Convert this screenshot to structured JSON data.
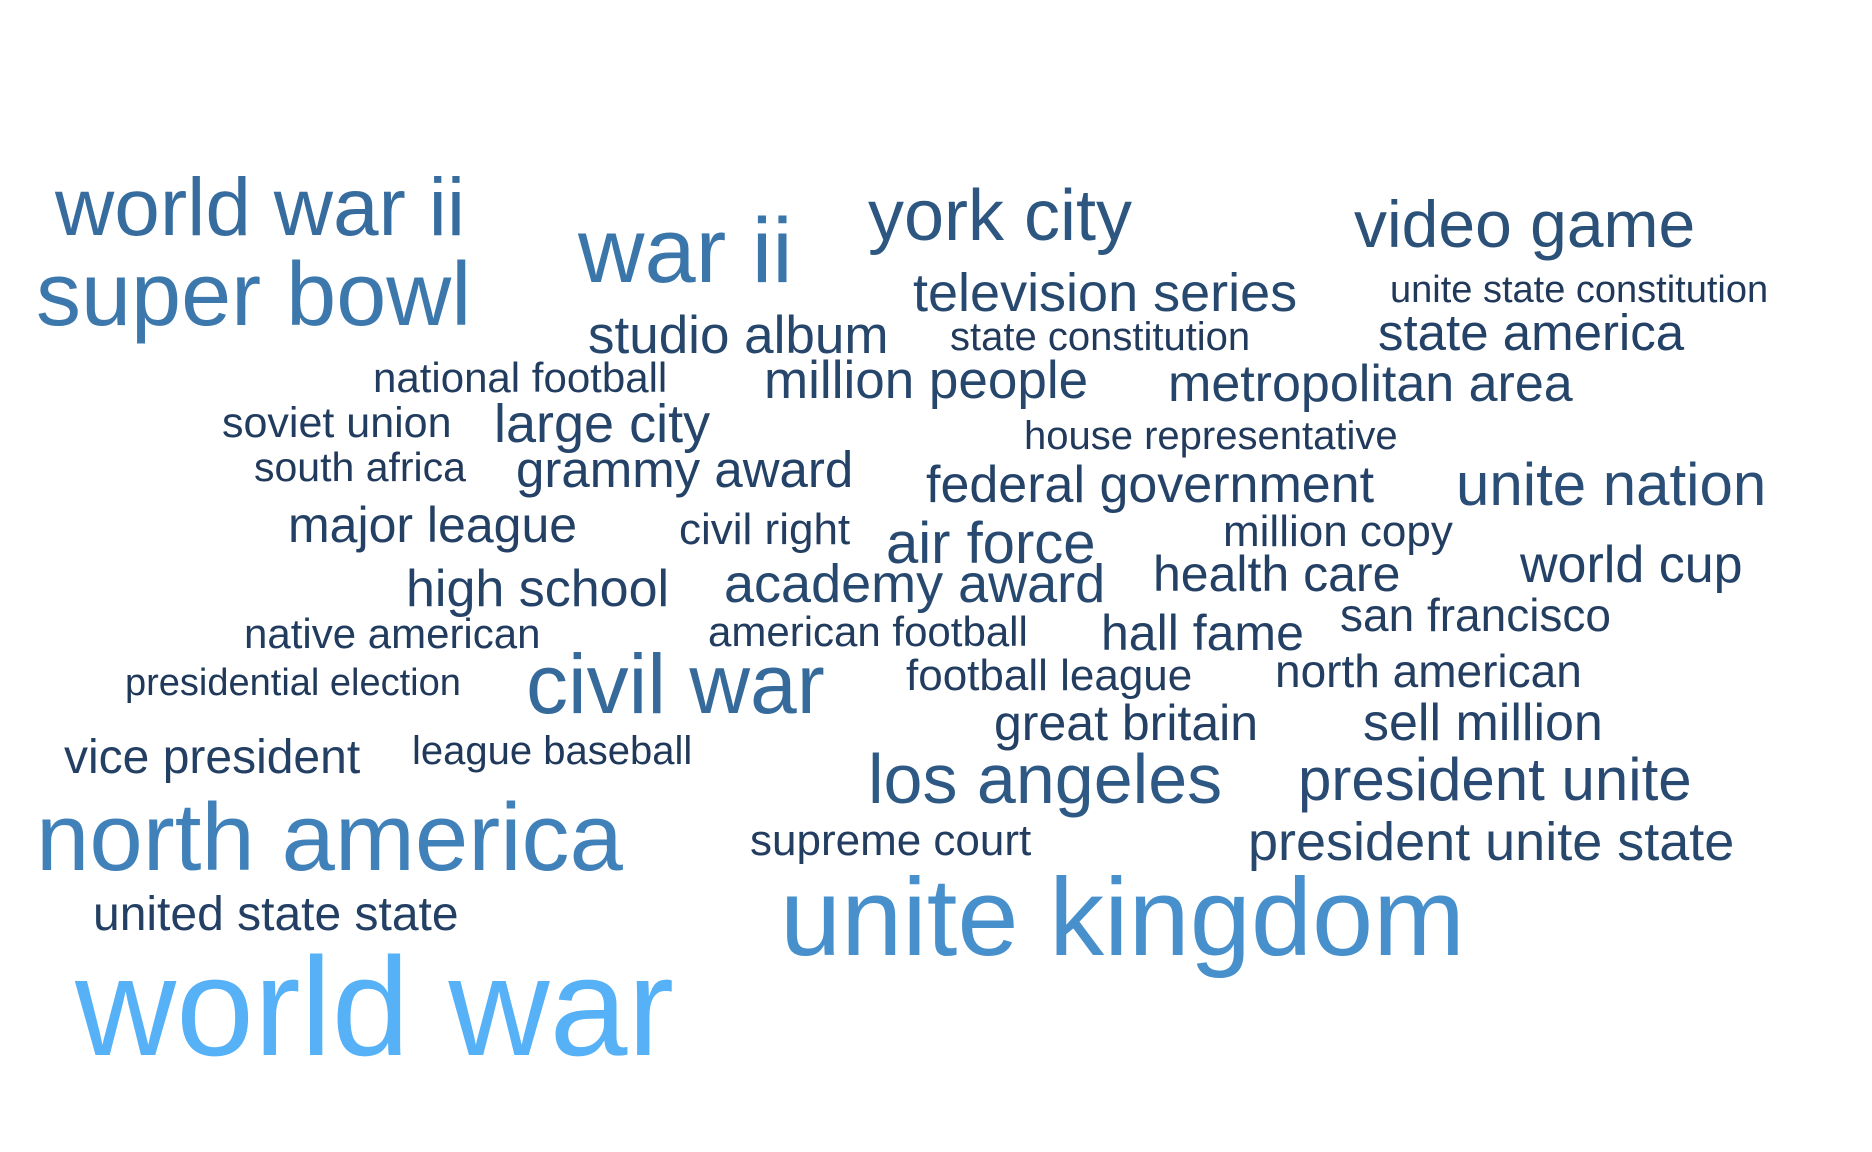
{
  "chart_data": {
    "type": "wordcloud",
    "color_scale": {
      "low": "#1b2d4b",
      "high": "#56b1f7"
    },
    "words": [
      {
        "text": "world war",
        "weight": 1.0
      },
      {
        "text": "unite kingdom",
        "weight": 0.75
      },
      {
        "text": "north america",
        "weight": 0.64
      },
      {
        "text": "super bowl",
        "weight": 0.57
      },
      {
        "text": "war ii",
        "weight": 0.55
      },
      {
        "text": "world war ii",
        "weight": 0.48
      },
      {
        "text": "civil war",
        "weight": 0.46
      },
      {
        "text": "los angeles",
        "weight": 0.33
      },
      {
        "text": "york city",
        "weight": 0.31
      },
      {
        "text": "video game",
        "weight": 0.27
      },
      {
        "text": "unite nation",
        "weight": 0.25
      },
      {
        "text": "president unite",
        "weight": 0.23
      },
      {
        "text": "air force",
        "weight": 0.22
      },
      {
        "text": "television series",
        "weight": 0.21
      },
      {
        "text": "academy award",
        "weight": 0.21
      },
      {
        "text": "president unite state",
        "weight": 0.2
      },
      {
        "text": "studio album",
        "weight": 0.19
      },
      {
        "text": "million people",
        "weight": 0.19
      },
      {
        "text": "metropolitan area",
        "weight": 0.18
      },
      {
        "text": "large city",
        "weight": 0.18
      },
      {
        "text": "federal government",
        "weight": 0.17
      },
      {
        "text": "sell million",
        "weight": 0.17
      },
      {
        "text": "high school",
        "weight": 0.17
      },
      {
        "text": "state america",
        "weight": 0.16
      },
      {
        "text": "grammy award",
        "weight": 0.16
      },
      {
        "text": "world cup",
        "weight": 0.16
      },
      {
        "text": "hall fame",
        "weight": 0.15
      },
      {
        "text": "major league",
        "weight": 0.15
      },
      {
        "text": "health care",
        "weight": 0.15
      },
      {
        "text": "great britain",
        "weight": 0.15
      },
      {
        "text": "vice president",
        "weight": 0.14
      },
      {
        "text": "united state state",
        "weight": 0.14
      },
      {
        "text": "san francisco",
        "weight": 0.13
      },
      {
        "text": "north american",
        "weight": 0.13
      },
      {
        "text": "million copy",
        "weight": 0.12
      },
      {
        "text": "football league",
        "weight": 0.12
      },
      {
        "text": "supreme court",
        "weight": 0.12
      },
      {
        "text": "civil right",
        "weight": 0.12
      },
      {
        "text": "american football",
        "weight": 0.11
      },
      {
        "text": "national football",
        "weight": 0.11
      },
      {
        "text": "soviet union",
        "weight": 0.11
      },
      {
        "text": "native american",
        "weight": 0.11
      },
      {
        "text": "south africa",
        "weight": 0.1
      },
      {
        "text": "state constitution",
        "weight": 0.1
      },
      {
        "text": "house representative",
        "weight": 0.1
      },
      {
        "text": "unite state constitution",
        "weight": 0.09
      },
      {
        "text": "league baseball",
        "weight": 0.09
      },
      {
        "text": "presidential election",
        "weight": 0.09
      }
    ]
  }
}
